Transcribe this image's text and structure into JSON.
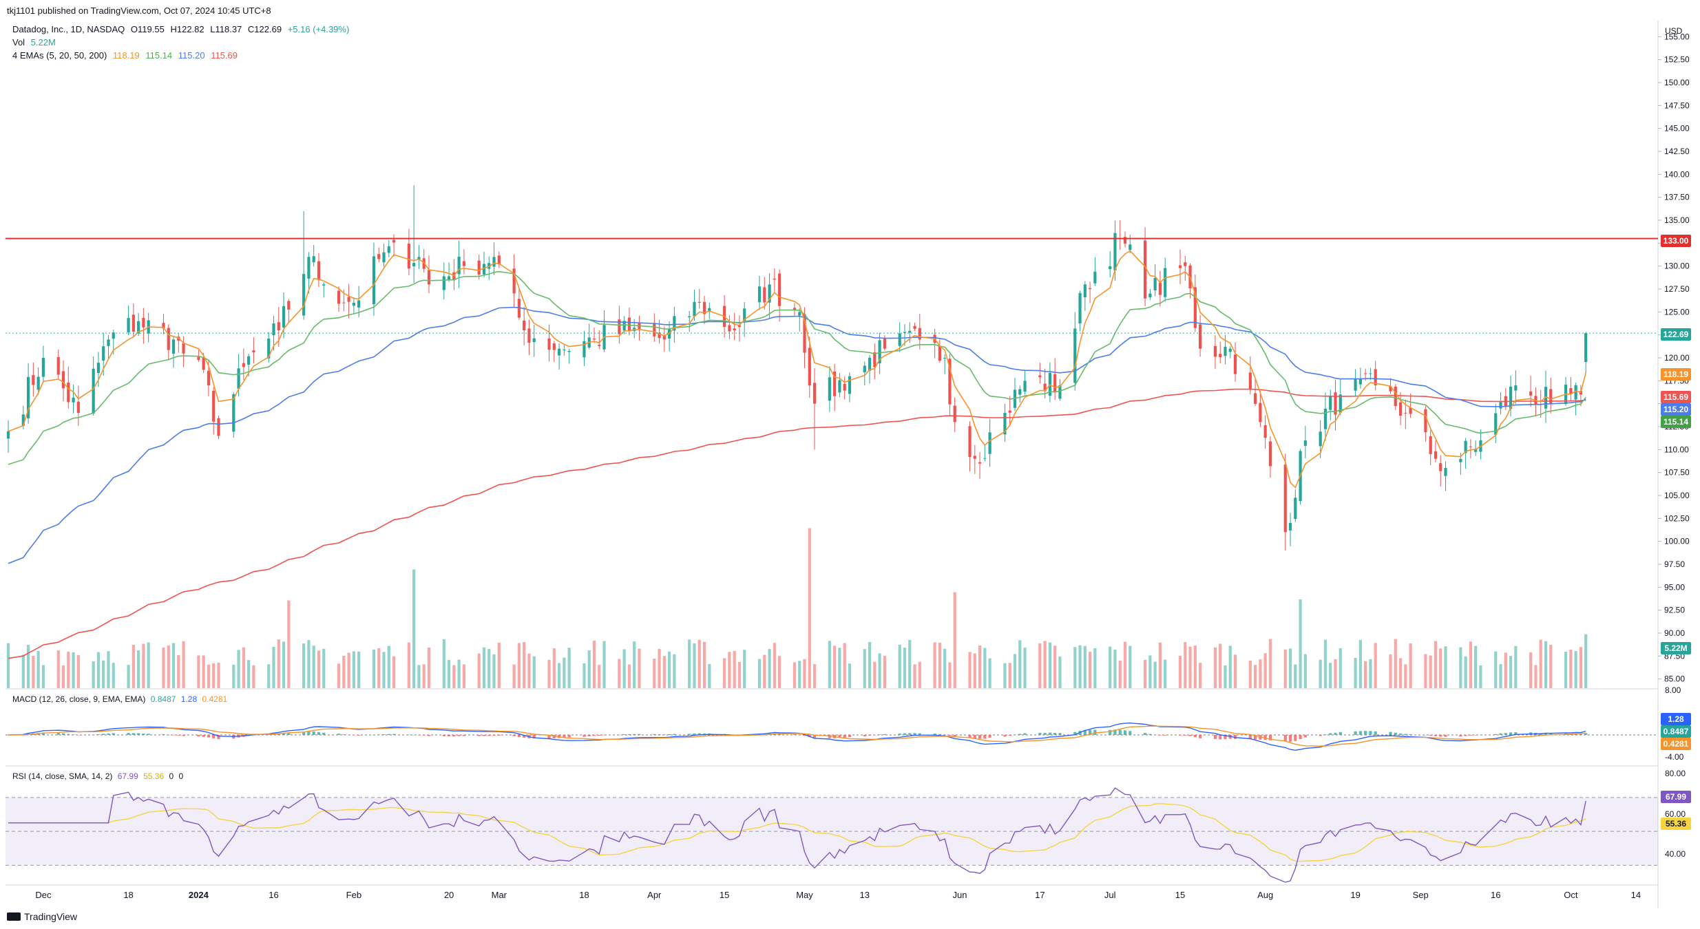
{
  "header": {
    "published": "tkj1101 published on TradingView.com, Oct 07, 2024 10:45 UTC+8",
    "symbol": "Datadog, Inc., 1D, NASDAQ",
    "open": "O119.55",
    "high": "H122.82",
    "low": "L118.37",
    "close": "C122.69",
    "change": "+5.16 (+4.39%)",
    "vol_label": "Vol",
    "vol_value": "5.22M",
    "ema_label": "4 EMAs (5, 20, 50, 200)",
    "ema5": "118.19",
    "ema20": "115.14",
    "ema50": "115.20",
    "ema200": "115.69"
  },
  "currency": "USD",
  "colors": {
    "up": "#26a69a",
    "down": "#ef5350",
    "ema5": "#f7932b",
    "ema20": "#66bb6a",
    "ema50": "#4c7de8",
    "ema200": "#ef5350",
    "resistance": "#e03030",
    "rsi": "#7e57c2",
    "rsi_ma": "#f5d442"
  },
  "price_tags": {
    "resistance": "133.00",
    "last": "122.69",
    "ema5": "118.19",
    "ema200": "115.69",
    "ema50": "115.20",
    "ema20": "115.14",
    "volume": "5.22M"
  },
  "macd": {
    "title": "MACD (12, 26, close, 9, EMA, EMA)",
    "v1": "0.8487",
    "v2": "1.28",
    "v3": "0.4281",
    "axis": [
      "8.00",
      "-4.00"
    ],
    "tags": [
      "1.28",
      "0.8487",
      "0.4281"
    ]
  },
  "rsi": {
    "title": "RSI (14, close, SMA, 14, 2)",
    "v1": "67.99",
    "v2": "55.36",
    "v3": "0",
    "v4": "0",
    "axis": [
      "80.00",
      "60.00",
      "40.00"
    ],
    "tags": [
      "67.99",
      "55.36"
    ]
  },
  "footer": {
    "brand": "TradingView"
  },
  "chart_data": {
    "type": "candlestick",
    "price_axis": [
      "155.00",
      "152.50",
      "150.00",
      "147.50",
      "145.00",
      "142.50",
      "140.00",
      "137.50",
      "135.00",
      "132.50",
      "130.00",
      "127.50",
      "125.00",
      "122.50",
      "120.00",
      "117.50",
      "115.00",
      "112.50",
      "110.00",
      "107.50",
      "105.00",
      "102.50",
      "100.00",
      "97.50",
      "95.00",
      "92.50",
      "90.00",
      "87.50",
      "85.00"
    ],
    "ylim": [
      84,
      156
    ],
    "time_labels": [
      "Dec",
      "18",
      "2024",
      "16",
      "Feb",
      "20",
      "Mar",
      "18",
      "Apr",
      "15",
      "May",
      "13",
      "Jun",
      "17",
      "Jul",
      "15",
      "Aug",
      "19",
      "Sep",
      "16",
      "Oct",
      "14"
    ],
    "resistance_level": 133.0,
    "close_anchors": [
      {
        "date": "2023-11-24",
        "close": 112.0
      },
      {
        "date": "2023-12-01",
        "close": 120.0
      },
      {
        "date": "2023-12-08",
        "close": 114.0
      },
      {
        "date": "2023-12-14",
        "close": 122.0
      },
      {
        "date": "2023-12-20",
        "close": 124.0
      },
      {
        "date": "2023-12-27",
        "close": 122.0
      },
      {
        "date": "2024-01-03",
        "close": 117.0
      },
      {
        "date": "2024-01-05",
        "close": 111.5
      },
      {
        "date": "2024-01-10",
        "close": 119.0
      },
      {
        "date": "2024-01-17",
        "close": 123.0
      },
      {
        "date": "2024-01-23",
        "close": 131.0
      },
      {
        "date": "2024-01-26",
        "close": 128.0
      },
      {
        "date": "2024-02-01",
        "close": 126.0
      },
      {
        "date": "2024-02-07",
        "close": 131.5
      },
      {
        "date": "2024-02-14",
        "close": 131.0
      },
      {
        "date": "2024-02-16",
        "close": 128.0
      },
      {
        "date": "2024-02-23",
        "close": 130.0
      },
      {
        "date": "2024-02-29",
        "close": 131.0
      },
      {
        "date": "2024-03-06",
        "close": 123.0
      },
      {
        "date": "2024-03-13",
        "close": 121.0
      },
      {
        "date": "2024-03-20",
        "close": 122.0
      },
      {
        "date": "2024-03-27",
        "close": 123.0
      },
      {
        "date": "2024-04-03",
        "close": 122.0
      },
      {
        "date": "2024-04-10",
        "close": 126.0
      },
      {
        "date": "2024-04-17",
        "close": 123.0
      },
      {
        "date": "2024-04-24",
        "close": 128.0
      },
      {
        "date": "2024-04-30",
        "close": 125.0
      },
      {
        "date": "2024-05-03",
        "close": 115.0
      },
      {
        "date": "2024-05-10",
        "close": 118.0
      },
      {
        "date": "2024-05-17",
        "close": 121.0
      },
      {
        "date": "2024-05-24",
        "close": 122.0
      },
      {
        "date": "2024-05-29",
        "close": 120.0
      },
      {
        "date": "2024-05-31",
        "close": 113.0
      },
      {
        "date": "2024-06-04",
        "close": 109.0
      },
      {
        "date": "2024-06-10",
        "close": 114.0
      },
      {
        "date": "2024-06-14",
        "close": 117.5
      },
      {
        "date": "2024-06-21",
        "close": 117.0
      },
      {
        "date": "2024-06-26",
        "close": 128.0
      },
      {
        "date": "2024-07-03",
        "close": 133.0
      },
      {
        "date": "2024-07-09",
        "close": 127.0
      },
      {
        "date": "2024-07-16",
        "close": 130.0
      },
      {
        "date": "2024-07-19",
        "close": 121.0
      },
      {
        "date": "2024-07-25",
        "close": 121.0
      },
      {
        "date": "2024-07-31",
        "close": 113.0
      },
      {
        "date": "2024-08-05",
        "close": 101.0
      },
      {
        "date": "2024-08-09",
        "close": 111.0
      },
      {
        "date": "2024-08-16",
        "close": 116.0
      },
      {
        "date": "2024-08-23",
        "close": 117.0
      },
      {
        "date": "2024-08-29",
        "close": 114.0
      },
      {
        "date": "2024-09-04",
        "close": 109.0
      },
      {
        "date": "2024-09-06",
        "close": 108.0
      },
      {
        "date": "2024-09-13",
        "close": 111.0
      },
      {
        "date": "2024-09-20",
        "close": 117.0
      },
      {
        "date": "2024-09-27",
        "close": 115.0
      },
      {
        "date": "2024-10-03",
        "close": 116.0
      },
      {
        "date": "2024-10-04",
        "close": 122.69
      }
    ],
    "volume_spikes": [
      {
        "date": "2024-01-19",
        "volume_m": 8.5
      },
      {
        "date": "2024-02-13",
        "volume_m": 11.5
      },
      {
        "date": "2024-05-02",
        "volume_m": 15.5
      },
      {
        "date": "2024-05-31",
        "volume_m": 9.3
      },
      {
        "date": "2024-08-08",
        "volume_m": 8.6
      }
    ]
  }
}
